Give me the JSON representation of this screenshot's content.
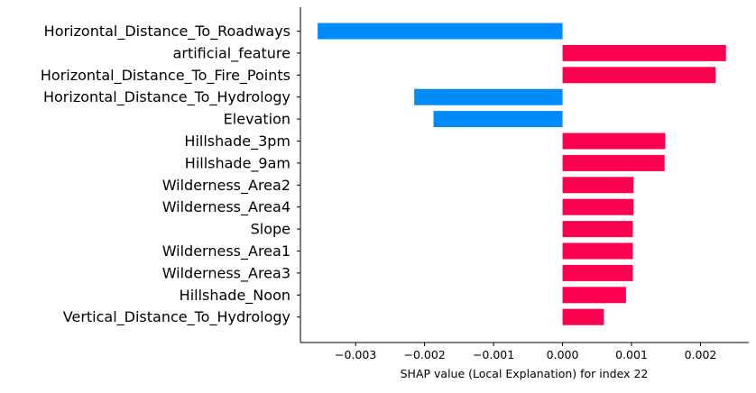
{
  "chart_data": {
    "type": "bar",
    "orientation": "horizontal",
    "categories": [
      "Horizontal_Distance_To_Roadways",
      "artificial_feature",
      "Horizontal_Distance_To_Fire_Points",
      "Horizontal_Distance_To_Hydrology",
      "Elevation",
      "Hillshade_3pm",
      "Hillshade_9am",
      "Wilderness_Area2",
      "Wilderness_Area4",
      "Slope",
      "Wilderness_Area1",
      "Wilderness_Area3",
      "Hillshade_Noon",
      "Vertical_Distance_To_Hydrology"
    ],
    "values": [
      -0.00355,
      0.00237,
      0.00222,
      -0.00215,
      -0.00187,
      0.00149,
      0.00148,
      0.00103,
      0.00103,
      0.00102,
      0.00102,
      0.00102,
      0.00092,
      0.0006
    ],
    "xlabel": "SHAP value (Local Explanation) for index 22",
    "ylabel": "",
    "xlim": [
      -0.0038,
      0.0027
    ],
    "xticks": [
      -0.003,
      -0.002,
      -0.001,
      0.0,
      0.001,
      0.002
    ],
    "xtick_labels": [
      "−0.003",
      "−0.002",
      "−0.001",
      "0.000",
      "0.001",
      "0.002"
    ],
    "grid": false,
    "colors": {
      "positive": "#ff0051",
      "negative": "#008bfb",
      "axis": "#000000"
    }
  }
}
